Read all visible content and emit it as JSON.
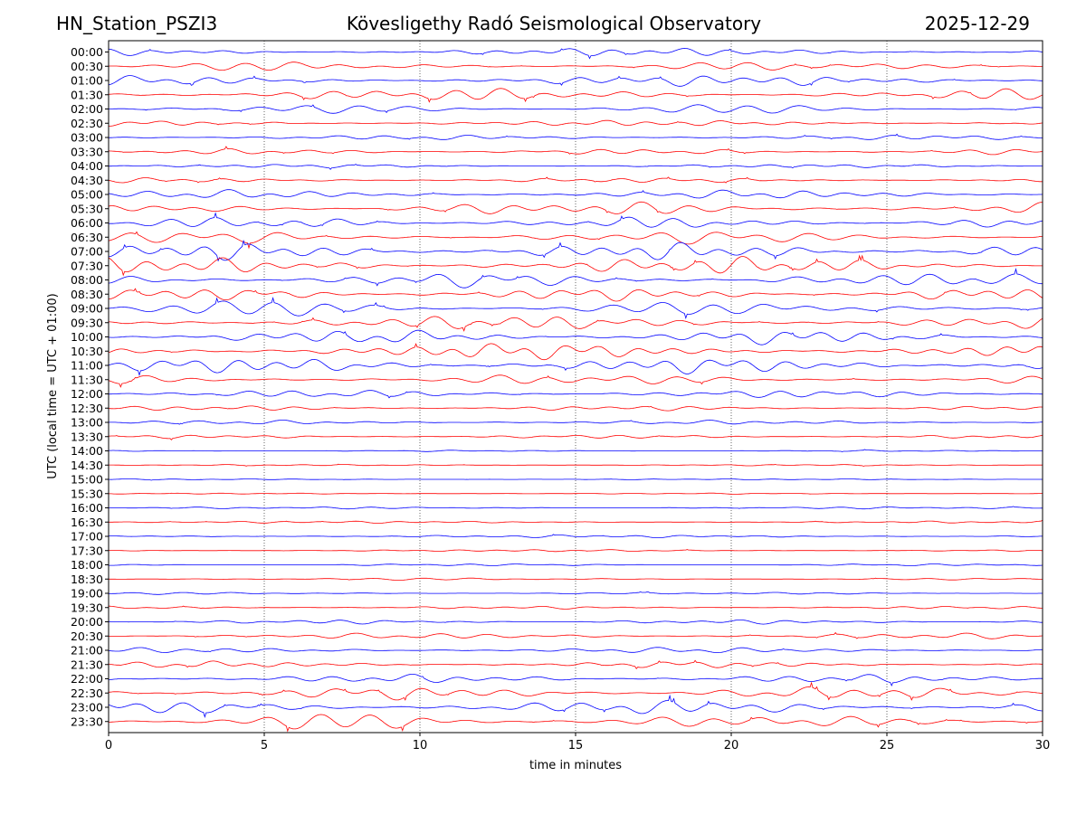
{
  "header": {
    "station": "HN_Station_PSZI3",
    "observatory": "Kövesligethy Radó Seismological Observatory",
    "date": "2025-12-29"
  },
  "chart_data": {
    "type": "line",
    "title": "Kövesligethy Radó Seismological Observatory",
    "xlabel": "time in minutes",
    "ylabel": "UTC (local time = UTC + 01:00)",
    "xlim": [
      0,
      30
    ],
    "xticks": [
      0,
      5,
      10,
      15,
      20,
      25,
      30
    ],
    "grid": "vertical dotted at 5-minute ticks",
    "colors": {
      "even_hour_trace": "#0000ff",
      "half_hour_trace": "#ff0000"
    },
    "rows": [
      {
        "label": "00:00",
        "amplitude": 0.55
      },
      {
        "label": "00:30",
        "amplitude": 0.6
      },
      {
        "label": "01:00",
        "amplitude": 0.75
      },
      {
        "label": "01:30",
        "amplitude": 0.85
      },
      {
        "label": "02:00",
        "amplitude": 0.6
      },
      {
        "label": "02:30",
        "amplitude": 0.4
      },
      {
        "label": "03:00",
        "amplitude": 0.35
      },
      {
        "label": "03:30",
        "amplitude": 0.4
      },
      {
        "label": "04:00",
        "amplitude": 0.25
      },
      {
        "label": "04:30",
        "amplitude": 0.35
      },
      {
        "label": "05:00",
        "amplitude": 0.6
      },
      {
        "label": "05:30",
        "amplitude": 0.95
      },
      {
        "label": "06:00",
        "amplitude": 0.8
      },
      {
        "label": "06:30",
        "amplitude": 0.9
      },
      {
        "label": "07:00",
        "amplitude": 1.2
      },
      {
        "label": "07:30",
        "amplitude": 1.2
      },
      {
        "label": "08:00",
        "amplitude": 1.0
      },
      {
        "label": "08:30",
        "amplitude": 0.9
      },
      {
        "label": "09:00",
        "amplitude": 1.0
      },
      {
        "label": "09:30",
        "amplitude": 1.0
      },
      {
        "label": "10:00",
        "amplitude": 1.0
      },
      {
        "label": "10:30",
        "amplitude": 1.1
      },
      {
        "label": "11:00",
        "amplitude": 1.1
      },
      {
        "label": "11:30",
        "amplitude": 0.7
      },
      {
        "label": "12:00",
        "amplitude": 0.55
      },
      {
        "label": "12:30",
        "amplitude": 0.35
      },
      {
        "label": "13:00",
        "amplitude": 0.3
      },
      {
        "label": "13:30",
        "amplitude": 0.25
      },
      {
        "label": "14:00",
        "amplitude": 0.1
      },
      {
        "label": "14:30",
        "amplitude": 0.1
      },
      {
        "label": "15:00",
        "amplitude": 0.08
      },
      {
        "label": "15:30",
        "amplitude": 0.08
      },
      {
        "label": "16:00",
        "amplitude": 0.15
      },
      {
        "label": "16:30",
        "amplitude": 0.15
      },
      {
        "label": "17:00",
        "amplitude": 0.2
      },
      {
        "label": "17:30",
        "amplitude": 0.15
      },
      {
        "label": "18:00",
        "amplitude": 0.15
      },
      {
        "label": "18:30",
        "amplitude": 0.15
      },
      {
        "label": "19:00",
        "amplitude": 0.15
      },
      {
        "label": "19:30",
        "amplitude": 0.2
      },
      {
        "label": "20:00",
        "amplitude": 0.3
      },
      {
        "label": "20:30",
        "amplitude": 0.4
      },
      {
        "label": "21:00",
        "amplitude": 0.4
      },
      {
        "label": "21:30",
        "amplitude": 0.45
      },
      {
        "label": "22:00",
        "amplitude": 0.6
      },
      {
        "label": "22:30",
        "amplitude": 0.9
      },
      {
        "label": "23:00",
        "amplitude": 1.0
      },
      {
        "label": "23:30",
        "amplitude": 1.1
      }
    ]
  }
}
